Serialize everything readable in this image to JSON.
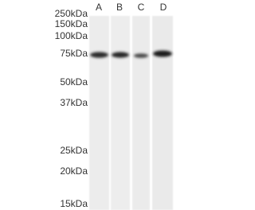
{
  "markers": [
    "250kDa",
    "150kDa",
    "100kDa",
    "75kDa",
    "50kDa",
    "37kDa",
    "25kDa",
    "20kDa",
    "15kDa"
  ],
  "lanes": [
    "A",
    "B",
    "C",
    "D"
  ]
}
